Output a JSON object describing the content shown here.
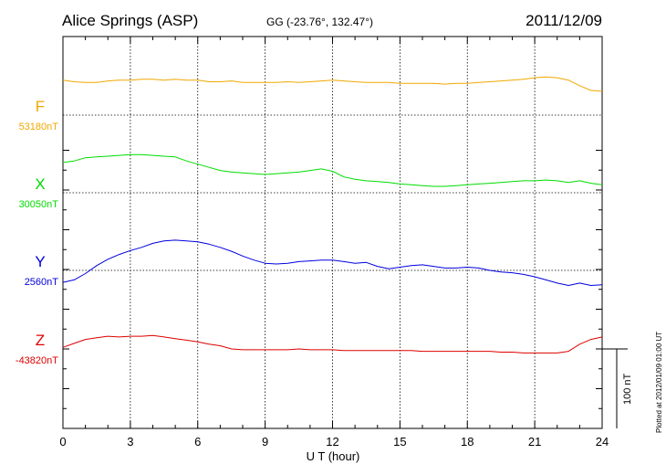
{
  "header": {
    "station": "Alice Springs (ASP)",
    "coords": "GG (-23.76°, 132.47°)",
    "date": "2011/12/09"
  },
  "side_note": "Plotted at 2012/01/09 01:00 UT",
  "scale_label": "100 nT",
  "chart_data": {
    "type": "line",
    "xlabel": "U T (hour)",
    "xlim": [
      0,
      24
    ],
    "xticks": [
      "0",
      "3",
      "6",
      "9",
      "12",
      "15",
      "18",
      "21",
      "24"
    ],
    "grid": true,
    "scale_bar_nT": 100,
    "series": [
      {
        "name": "F",
        "baseline_label": "53180nT",
        "color": "#f0a800",
        "x": [
          0,
          0.5,
          1,
          1.5,
          2,
          2.5,
          3,
          3.5,
          4,
          4.5,
          5,
          5.5,
          6,
          6.5,
          7,
          7.5,
          8,
          8.5,
          9,
          9.5,
          10,
          10.5,
          11,
          11.5,
          12,
          12.5,
          13,
          13.5,
          14,
          14.5,
          15,
          15.5,
          16,
          16.5,
          17,
          17.5,
          18,
          18.5,
          19,
          19.5,
          20,
          20.5,
          21,
          21.5,
          22,
          22.5,
          23,
          23.5,
          24
        ],
        "values": [
          44,
          42,
          41,
          41,
          43,
          44,
          44,
          45,
          45,
          44,
          45,
          44,
          44,
          42,
          42,
          43,
          41,
          41,
          41,
          41,
          42,
          41,
          42,
          43,
          44,
          43,
          42,
          41,
          41,
          41,
          40,
          40,
          40,
          40,
          39,
          40,
          40,
          41,
          42,
          43,
          44,
          45,
          47,
          48,
          47,
          44,
          37,
          31,
          30
        ]
      },
      {
        "name": "X",
        "baseline_label": "30050nT",
        "color": "#00dd00",
        "x": [
          0,
          0.5,
          1,
          1.5,
          2,
          2.5,
          3,
          3.5,
          4,
          4.5,
          5,
          5.5,
          6,
          6.5,
          7,
          7.5,
          8,
          8.5,
          9,
          9.5,
          10,
          10.5,
          11,
          11.5,
          12,
          12.5,
          13,
          13.5,
          14,
          14.5,
          15,
          15.5,
          16,
          16.5,
          17,
          17.5,
          18,
          18.5,
          19,
          19.5,
          20,
          20.5,
          21,
          21.5,
          22,
          22.5,
          23,
          23.5,
          24
        ],
        "values": [
          38,
          40,
          44,
          45,
          46,
          47,
          48,
          48,
          47,
          46,
          45,
          40,
          36,
          32,
          28,
          26,
          25,
          24,
          23,
          24,
          25,
          26,
          28,
          30,
          27,
          20,
          17,
          15,
          14,
          13,
          11,
          10,
          9,
          8,
          8,
          9,
          10,
          11,
          12,
          13,
          14,
          15,
          15,
          16,
          15,
          13,
          15,
          12,
          10
        ]
      },
      {
        "name": "Y",
        "baseline_label": "2560nT",
        "color": "#0000dd",
        "x": [
          0,
          0.5,
          1,
          1.5,
          2,
          2.5,
          3,
          3.5,
          4,
          4.5,
          5,
          5.5,
          6,
          6.5,
          7,
          7.5,
          8,
          8.5,
          9,
          9.5,
          10,
          10.5,
          11,
          11.5,
          12,
          12.5,
          13,
          13.5,
          14,
          14.5,
          15,
          15.5,
          16,
          16.5,
          17,
          17.5,
          18,
          18.5,
          19,
          19.5,
          20,
          20.5,
          21,
          21.5,
          22,
          22.5,
          23,
          23.5,
          24
        ],
        "values": [
          -15,
          -12,
          -4,
          6,
          14,
          20,
          25,
          29,
          34,
          37,
          38,
          37,
          36,
          33,
          29,
          24,
          18,
          13,
          9,
          8,
          9,
          11,
          12,
          13,
          13,
          11,
          9,
          10,
          5,
          2,
          4,
          6,
          7,
          5,
          3,
          3,
          4,
          3,
          0,
          -2,
          -3,
          -5,
          -8,
          -12,
          -16,
          -19,
          -16,
          -19,
          -18
        ]
      },
      {
        "name": "Z",
        "baseline_label": "-43820nT",
        "color": "#dd0000",
        "x": [
          0,
          0.5,
          1,
          1.5,
          2,
          2.5,
          3,
          3.5,
          4,
          4.5,
          5,
          5.5,
          6,
          6.5,
          7,
          7.5,
          8,
          8.5,
          9,
          9.5,
          10,
          10.5,
          11,
          11.5,
          12,
          12.5,
          13,
          13.5,
          14,
          14.5,
          15,
          15.5,
          16,
          16.5,
          17,
          17.5,
          18,
          18.5,
          19,
          19.5,
          20,
          20.5,
          21,
          21.5,
          22,
          22.5,
          23,
          23.5,
          24
        ],
        "values": [
          2,
          7,
          12,
          14,
          16,
          15,
          16,
          16,
          17,
          15,
          13,
          11,
          9,
          6,
          4,
          0,
          -1,
          -1,
          -1,
          -1,
          -1,
          0,
          -1,
          -1,
          -1,
          -2,
          -2,
          -2,
          -2,
          -2,
          -2,
          -2,
          -3,
          -3,
          -3,
          -3,
          -3,
          -3,
          -3,
          -4,
          -4,
          -5,
          -5,
          -5,
          -5,
          -3,
          6,
          12,
          15
        ]
      }
    ]
  }
}
